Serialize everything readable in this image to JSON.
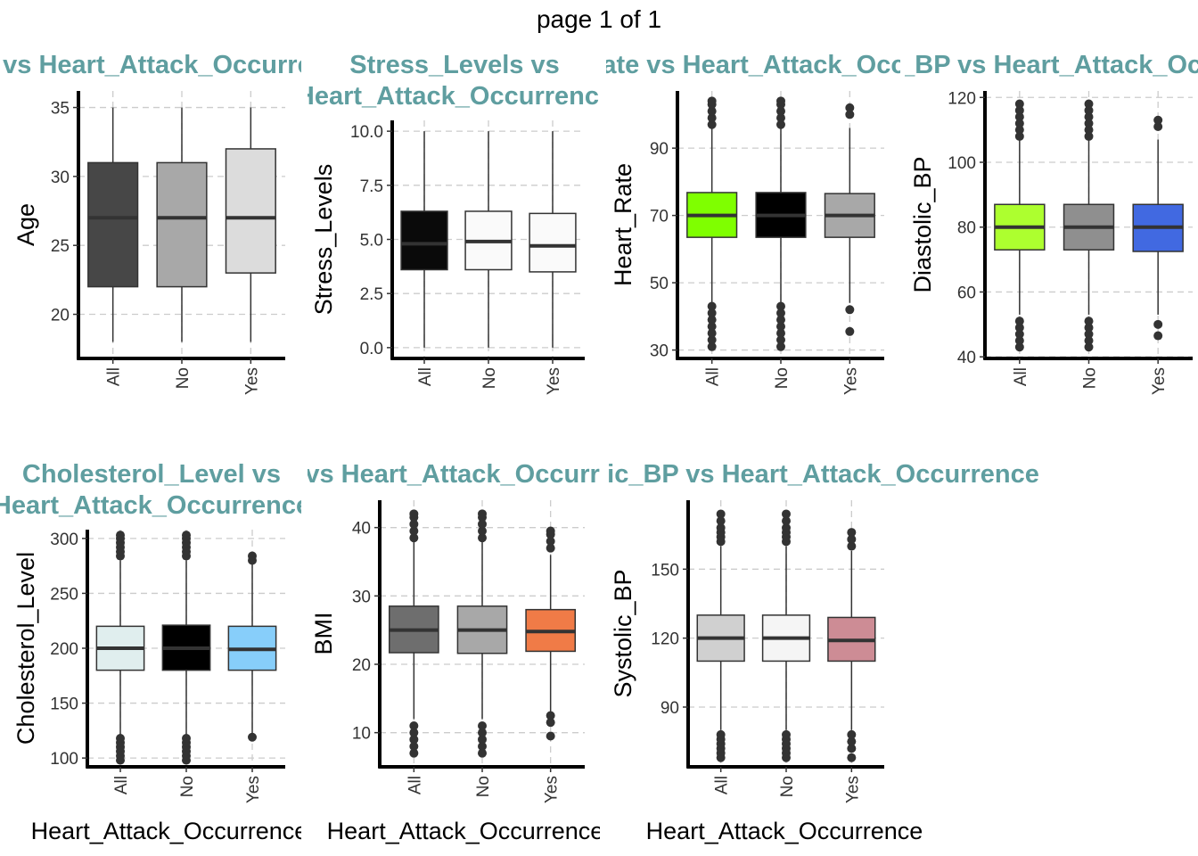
{
  "page_title": "page 1 of 1",
  "colors": {
    "title": "#5f9ea0",
    "axis": "#000000",
    "grid": "#cccccc",
    "whisker": "#333333",
    "outlier": "#333333"
  },
  "chart_data": [
    {
      "type": "boxplot",
      "title": "Age vs Heart_Attack_Occurrence",
      "xlabel": "Heart_Attack_Occurrence",
      "ylabel": "Age",
      "categories": [
        "All",
        "No",
        "Yes"
      ],
      "ylim": [
        16.8,
        36.2
      ],
      "yticks": [
        20,
        25,
        30,
        35
      ],
      "boxes": [
        {
          "q1": 22,
          "median": 27,
          "q3": 31,
          "min": 18,
          "max": 35,
          "outliers": [],
          "fill": "#474747"
        },
        {
          "q1": 22,
          "median": 27,
          "q3": 31,
          "min": 18,
          "max": 35,
          "outliers": [],
          "fill": "#a8a8a8"
        },
        {
          "q1": 23,
          "median": 27,
          "q3": 32,
          "min": 18,
          "max": 35,
          "outliers": [],
          "fill": "#dcdcdc"
        }
      ]
    },
    {
      "type": "boxplot",
      "title": "Stress_Levels vs Heart_Attack_Occurrence",
      "xlabel": "Heart_Attack_Occurrence",
      "ylabel": "Stress_Levels",
      "categories": [
        "All",
        "No",
        "Yes"
      ],
      "ylim": [
        -0.5,
        10.5
      ],
      "yticks": [
        0.0,
        2.5,
        5.0,
        7.5,
        10.0
      ],
      "boxes": [
        {
          "q1": 3.6,
          "median": 4.8,
          "q3": 6.3,
          "min": 0,
          "max": 10,
          "outliers": [],
          "fill": "#0a0a0a"
        },
        {
          "q1": 3.6,
          "median": 4.9,
          "q3": 6.3,
          "min": 0,
          "max": 10,
          "outliers": [],
          "fill": "#fafafa"
        },
        {
          "q1": 3.5,
          "median": 4.7,
          "q3": 6.2,
          "min": 0,
          "max": 10,
          "outliers": [],
          "fill": "#fafafa"
        }
      ]
    },
    {
      "type": "boxplot",
      "title": "Heart_Rate vs Heart_Attack_Occurrence",
      "xlabel": "Heart_Attack_Occurrence",
      "ylabel": "Heart_Rate",
      "categories": [
        "All",
        "No",
        "Yes"
      ],
      "ylim": [
        27.5,
        107
      ],
      "yticks": [
        30,
        50,
        70,
        90
      ],
      "boxes": [
        {
          "q1": 63.5,
          "median": 70,
          "q3": 76.8,
          "min": 44,
          "max": 96,
          "outliers": [
            31,
            33,
            35,
            37,
            39,
            41,
            43,
            97,
            99,
            101,
            103,
            104
          ],
          "fill": "#7fff00"
        },
        {
          "q1": 63.5,
          "median": 70,
          "q3": 76.8,
          "min": 44,
          "max": 96,
          "outliers": [
            31,
            33,
            35,
            37,
            39,
            41,
            43,
            97,
            99,
            101,
            103,
            104
          ],
          "fill": "#000000"
        },
        {
          "q1": 63.5,
          "median": 70,
          "q3": 76.5,
          "min": 44,
          "max": 96,
          "outliers": [
            35.5,
            42,
            100,
            102
          ],
          "fill": "#a8a8a8"
        }
      ]
    },
    {
      "type": "boxplot",
      "title": "Diastolic_BP vs Heart_Attack_Occurrence",
      "xlabel": "Heart_Attack_Occurrence",
      "ylabel": "Diastolic_BP",
      "categories": [
        "All",
        "No",
        "Yes"
      ],
      "ylim": [
        39.5,
        122
      ],
      "yticks": [
        40,
        60,
        80,
        100,
        120
      ],
      "boxes": [
        {
          "q1": 73,
          "median": 80,
          "q3": 87,
          "min": 53,
          "max": 107,
          "outliers": [
            43,
            45,
            47,
            49,
            51,
            108,
            110,
            112,
            114,
            116,
            118
          ],
          "fill": "#adff2f"
        },
        {
          "q1": 73,
          "median": 80,
          "q3": 87,
          "min": 53,
          "max": 107,
          "outliers": [
            43,
            45,
            47,
            49,
            51,
            108,
            110,
            112,
            114,
            116,
            118
          ],
          "fill": "#8f8f8f"
        },
        {
          "q1": 72.5,
          "median": 80,
          "q3": 87,
          "min": 53,
          "max": 107,
          "outliers": [
            46.5,
            50,
            111,
            113
          ],
          "fill": "#4169e1"
        }
      ]
    },
    {
      "type": "boxplot",
      "title": "Cholesterol_Level vs Heart_Attack_Occurrence",
      "xlabel": "Heart_Attack_Occurrence",
      "ylabel": "Cholesterol_Level",
      "categories": [
        "All",
        "No",
        "Yes"
      ],
      "ylim": [
        92,
        308
      ],
      "yticks": [
        100,
        150,
        200,
        250,
        300
      ],
      "boxes": [
        {
          "q1": 180,
          "median": 200,
          "q3": 220,
          "min": 120,
          "max": 280,
          "outliers": [
            98,
            102,
            106,
            110,
            114,
            118,
            284,
            288,
            292,
            296,
            300,
            303
          ],
          "fill": "#e0eeee"
        },
        {
          "q1": 180,
          "median": 200,
          "q3": 221,
          "min": 120,
          "max": 280,
          "outliers": [
            98,
            102,
            106,
            110,
            114,
            118,
            284,
            288,
            292,
            296,
            300,
            303
          ],
          "fill": "#000000"
        },
        {
          "q1": 180,
          "median": 199,
          "q3": 220,
          "min": 122,
          "max": 278,
          "outliers": [
            119,
            280,
            284
          ],
          "fill": "#87cefa"
        }
      ]
    },
    {
      "type": "boxplot",
      "title": "BMI vs Heart_Attack_Occurrence",
      "xlabel": "Heart_Attack_Occurrence",
      "ylabel": "BMI",
      "categories": [
        "All",
        "No",
        "Yes"
      ],
      "ylim": [
        5,
        44
      ],
      "yticks": [
        10,
        20,
        30,
        40
      ],
      "boxes": [
        {
          "q1": 21.7,
          "median": 25,
          "q3": 28.5,
          "min": 12,
          "max": 38,
          "outliers": [
            7,
            8,
            9,
            10,
            11,
            38.5,
            39.5,
            40.5,
            41.5,
            42
          ],
          "fill": "#6e6e6e"
        },
        {
          "q1": 21.6,
          "median": 25,
          "q3": 28.5,
          "min": 12,
          "max": 38,
          "outliers": [
            7,
            8,
            9,
            10,
            11,
            38.5,
            39.5,
            40.5,
            41.5,
            42
          ],
          "fill": "#a8a8a8"
        },
        {
          "q1": 21.9,
          "median": 24.8,
          "q3": 28,
          "min": 13,
          "max": 36,
          "outliers": [
            9.5,
            11.5,
            12.5,
            37,
            38,
            39,
            39.5
          ],
          "fill": "#f07b47"
        }
      ]
    },
    {
      "type": "boxplot",
      "title": "Systolic_BP vs Heart_Attack_Occurrence",
      "xlabel": "Heart_Attack_Occurrence",
      "ylabel": "Systolic_BP",
      "categories": [
        "All",
        "No",
        "Yes"
      ],
      "ylim": [
        64,
        180
      ],
      "yticks": [
        90,
        120,
        150
      ],
      "boxes": [
        {
          "q1": 110,
          "median": 120,
          "q3": 130,
          "min": 80,
          "max": 160,
          "outliers": [
            68,
            70,
            72,
            74,
            76,
            78,
            162,
            164,
            166,
            168,
            171,
            174
          ],
          "fill": "#d0d0d0"
        },
        {
          "q1": 110,
          "median": 120,
          "q3": 130,
          "min": 80,
          "max": 160,
          "outliers": [
            68,
            70,
            72,
            74,
            76,
            78,
            162,
            164,
            166,
            168,
            171,
            174
          ],
          "fill": "#f5f5f5"
        },
        {
          "q1": 110,
          "median": 119,
          "q3": 129,
          "min": 80,
          "max": 158,
          "outliers": [
            68,
            72,
            75,
            78,
            160,
            163,
            166
          ],
          "fill": "#cd8c95"
        }
      ]
    }
  ]
}
